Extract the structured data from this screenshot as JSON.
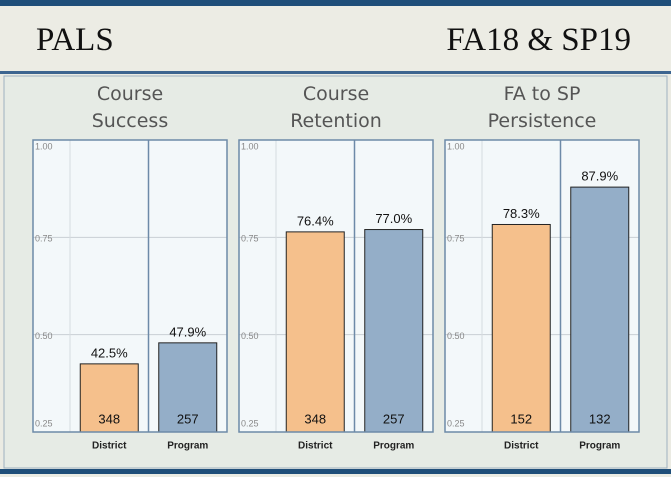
{
  "header": {
    "left": "PALS",
    "right": "FA18 & SP19"
  },
  "chart_data": [
    {
      "type": "bar",
      "title": "Course Success",
      "categories": [
        "District",
        "Program"
      ],
      "values": [
        0.425,
        0.479
      ],
      "value_labels": [
        "42.5%",
        "47.9%"
      ],
      "counts": [
        348,
        257
      ],
      "colors": [
        "#f5c08c",
        "#94aec8"
      ],
      "ylim": [
        0.25,
        1
      ],
      "yticks": [
        0.25,
        {
          "value": 0.5,
          "label": "0.50"
        },
        0.75,
        {
          "value": 1,
          "label": "1.00"
        }
      ],
      "grid": true
    },
    {
      "type": "bar",
      "title": "Course Retention",
      "categories": [
        "District",
        "Program"
      ],
      "values": [
        0.764,
        0.77
      ],
      "value_labels": [
        "76.4%",
        "77.0%"
      ],
      "counts": [
        348,
        257
      ],
      "colors": [
        "#f5c08c",
        "#94aec8"
      ],
      "ylim": [
        0.25,
        1
      ],
      "yticks": [
        0.25,
        {
          "value": 0.5,
          "label": "0.50"
        },
        0.75,
        {
          "value": 1,
          "label": "1.00"
        }
      ],
      "grid": true
    },
    {
      "type": "bar",
      "title": "FA to SP Persistence",
      "categories": [
        "District",
        "Program"
      ],
      "values": [
        0.783,
        0.879
      ],
      "value_labels": [
        "78.3%",
        "87.9%"
      ],
      "counts": [
        152,
        132
      ],
      "colors": [
        "#f5c08c",
        "#94aec8"
      ],
      "ylim": [
        0.25,
        1
      ],
      "yticks": [
        0.25,
        {
          "value": 0.5,
          "label": "0.50"
        },
        0.75,
        {
          "value": 1,
          "label": "1.00"
        }
      ],
      "grid": true
    }
  ]
}
